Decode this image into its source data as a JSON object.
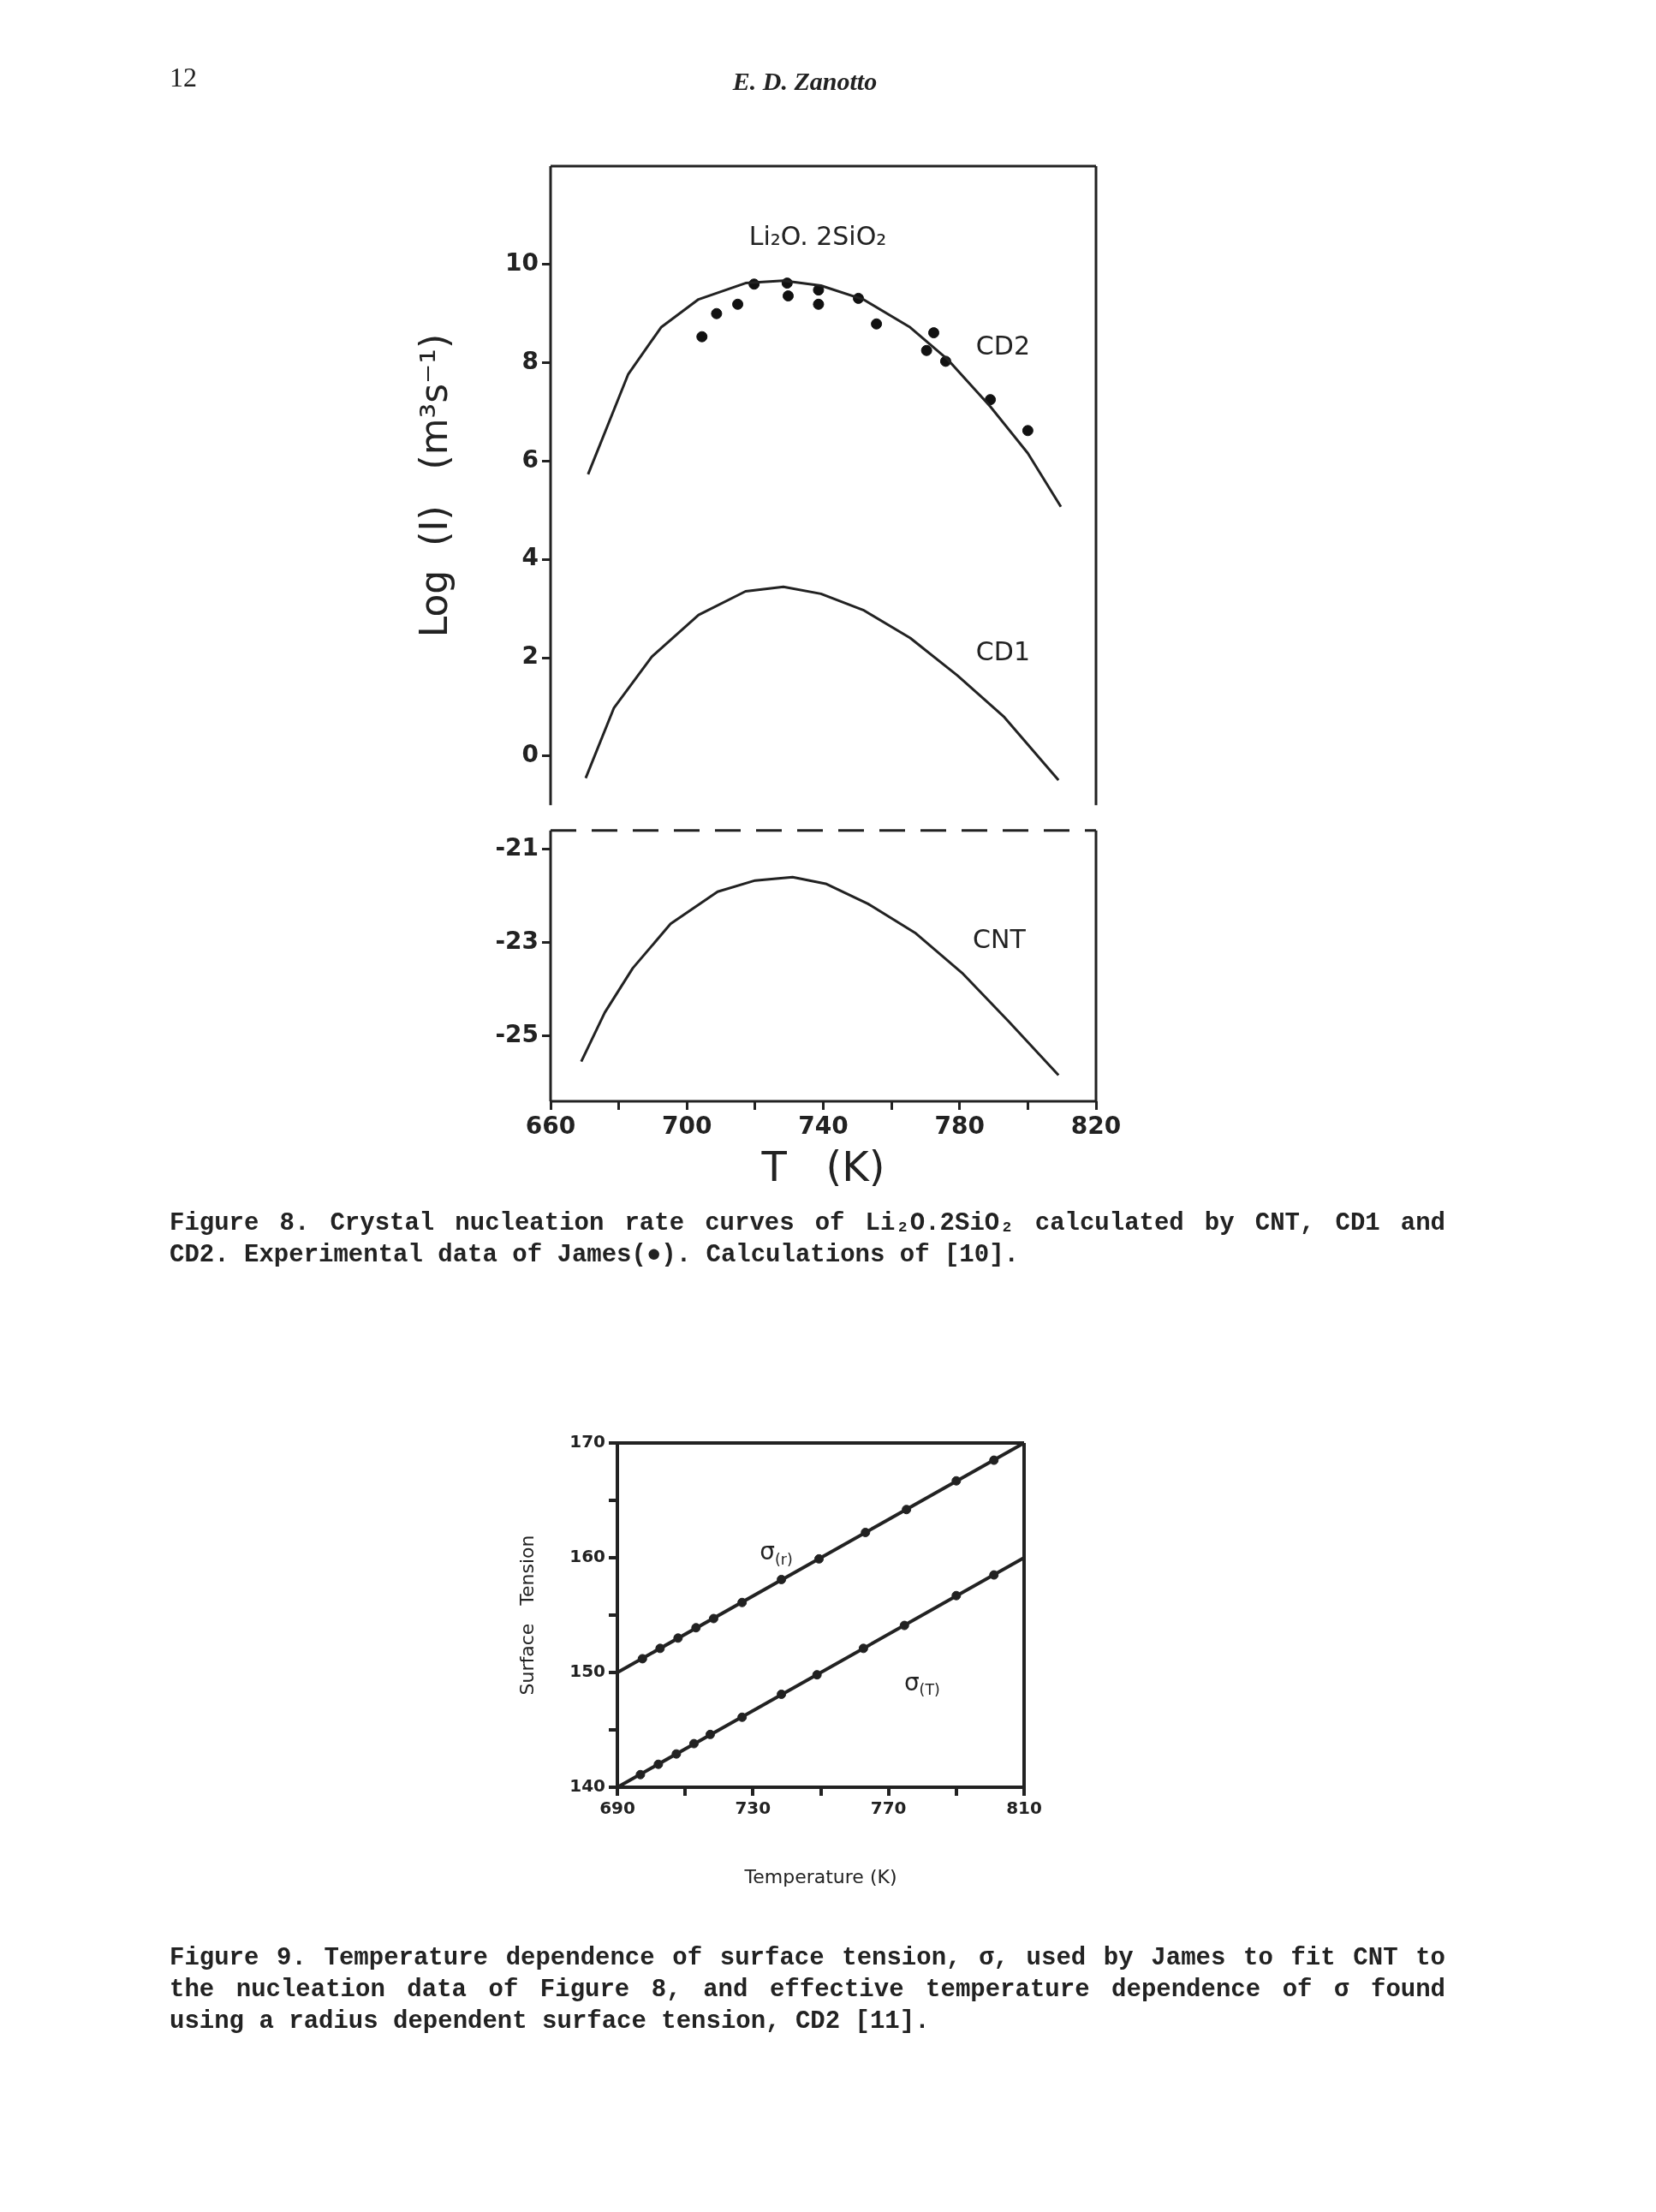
{
  "chart_data": [
    {
      "type": "line",
      "ylabel": "Log  (I)   (m³s⁻¹)",
      "xlim": [
        660,
        820
      ],
      "ylim": [
        -1,
        12
      ],
      "yticks": [
        0,
        2,
        4,
        6,
        8,
        10
      ],
      "tick_labels": "y",
      "annotations": [
        "12",
        "E. D. Zanotto",
        "Li₂O. 2SiO₂"
      ],
      "series": [
        {
          "name": "CD2",
          "color": "#222222",
          "marker": "none",
          "x": [
            671,
            682.8,
            692.4,
            703.4,
            717.2,
            728.3,
            739.3,
            751.7,
            765.5,
            776.6,
            789,
            800,
            809.7
          ],
          "values": [
            5.73,
            7.77,
            8.72,
            9.29,
            9.62,
            9.67,
            9.57,
            9.29,
            8.72,
            8.06,
            7.11,
            6.16,
            5.07
          ]
        },
        {
          "type": "scatter",
          "color": "#111111",
          "marker": "circle",
          "x": [
            704.4,
            708.7,
            714.9,
            719.7,
            729.4,
            729.7,
            738.6,
            738.6,
            750.3,
            755.6,
            772.4,
            770.3,
            775.9,
            789,
            800
          ],
          "values": [
            8.53,
            9.0,
            9.19,
            9.6,
            9.62,
            9.36,
            9.48,
            9.19,
            9.31,
            8.79,
            8.61,
            8.25,
            8.03,
            7.25,
            6.62
          ]
        },
        {
          "name": "CD1",
          "color": "#222222",
          "marker": "none",
          "x": [
            670.3,
            678.6,
            689.7,
            703.4,
            717.2,
            728.3,
            739.3,
            751.7,
            765.5,
            779.3,
            793.1,
            809
          ],
          "values": [
            -0.45,
            0.98,
            2.02,
            2.87,
            3.35,
            3.44,
            3.3,
            2.97,
            2.4,
            1.64,
            0.79,
            -0.49
          ]
        }
      ]
    },
    {
      "type": "line",
      "xlabel": "T   (K)",
      "xlim": [
        660,
        820
      ],
      "ylim": [
        -26.4,
        -20.6
      ],
      "yticks": [
        -21,
        -23,
        -25
      ],
      "xticks": [
        660,
        {
          "value": 680,
          "label": null
        },
        700,
        {
          "value": 720,
          "label": null
        },
        740,
        {
          "value": 760,
          "label": null
        },
        780,
        {
          "value": 800,
          "label": null
        },
        820
      ],
      "annotations": [
        "Figure 8. Crystal nucleation rate curves of Li₂O.2SiO₂ calculated by CNT, CD1 and CD2. Experimental data of James(●). Calculations of [10]."
      ],
      "series": [
        {
          "name": "CNT",
          "color": "#222222",
          "marker": "none",
          "x": [
            669,
            675.9,
            684.1,
            695.2,
            709,
            720,
            731,
            740.7,
            753.1,
            766.9,
            780.7,
            794.5,
            809
          ],
          "values": [
            -25.55,
            -24.5,
            -23.55,
            -22.6,
            -21.91,
            -21.67,
            -21.6,
            -21.74,
            -22.17,
            -22.79,
            -23.65,
            -24.7,
            -25.84
          ]
        }
      ]
    },
    {
      "type": "line",
      "xlabel": "Temperature (K)",
      "ylabel": "Surface   Tension",
      "xlim": [
        690,
        810
      ],
      "ylim": [
        140,
        170
      ],
      "xticks": [
        690,
        {
          "value": 710,
          "label": null
        },
        730,
        {
          "value": 750,
          "label": null
        },
        770,
        {
          "value": 790,
          "label": null
        },
        810
      ],
      "yticks": [
        140,
        {
          "value": 145,
          "label": null
        },
        150,
        {
          "value": 155,
          "label": null
        },
        160,
        {
          "value": 165,
          "label": null
        },
        170
      ],
      "annotations": [
        "Figure 9. Temperature dependence of surface tension, σ, used by James to fit CNT to the nucleation data of Figure 8, and effective temperature dependence of σ found using a radius dependent surface tension, CD2 [11]."
      ],
      "series": [
        {
          "name": "σ$_{(r)}$",
          "color": "#222222",
          "marker": "none",
          "x": [
            690,
            810
          ],
          "values": [
            150,
            170
          ]
        },
        {
          "type": "scatter",
          "color": "#222222",
          "marker": "circle",
          "x": [
            697.4,
            702.6,
            707.9,
            713.2,
            718.4,
            726.8,
            738.4,
            749.5,
            763.2,
            775.3,
            790,
            801.1
          ],
          "values": [
            151.2,
            152.1,
            153.0,
            153.9,
            154.7,
            156.1,
            158.1,
            159.9,
            162.2,
            164.2,
            166.7,
            168.5
          ]
        },
        {
          "name": "σ$_{(T)}$",
          "color": "#222222",
          "marker": "none",
          "x": [
            690,
            810
          ],
          "values": [
            140,
            160
          ]
        },
        {
          "type": "scatter",
          "color": "#222222",
          "marker": "circle",
          "x": [
            696.8,
            702.1,
            707.4,
            712.6,
            717.4,
            726.8,
            738.4,
            748.9,
            762.6,
            774.7,
            790,
            801.1
          ],
          "values": [
            141.1,
            142.0,
            142.9,
            143.8,
            144.6,
            146.1,
            148.1,
            149.8,
            152.1,
            154.1,
            156.7,
            158.5
          ]
        }
      ]
    }
  ]
}
